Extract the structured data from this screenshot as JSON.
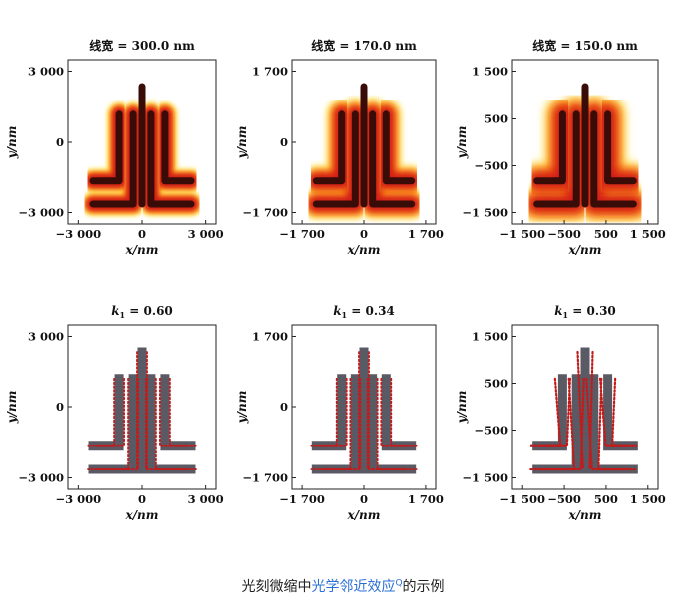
{
  "caption": {
    "prefix": "光刻微缩中",
    "link": "光学邻近效应",
    "link_marker": "Q",
    "suffix": "的示例"
  },
  "x_axis_label": "x/nm",
  "y_axis_label": "y/nm",
  "rows": [
    {
      "kind": "aerial-image",
      "panels": [
        {
          "title": "线宽 = 300.0 nm",
          "range": 3000,
          "ticks": [
            "−3 000",
            "0",
            "3 000"
          ],
          "blur": 1.0
        },
        {
          "title": "线宽 = 170.0 nm",
          "range": 1700,
          "ticks": [
            "−1 700",
            "0",
            "1 700"
          ],
          "blur": 1.5
        },
        {
          "title": "线宽 = 150.0 nm",
          "range": 1500,
          "ticks": [
            "−1 500",
            "−500",
            "500",
            "1 500"
          ],
          "ytickvals": [
            -1500,
            -500,
            500,
            1500
          ],
          "blur": 2.1
        }
      ]
    },
    {
      "kind": "printed-pattern",
      "panels": [
        {
          "title_pre": "k",
          "title_sub": "1",
          "title_post": " = 0.60",
          "range": 3000,
          "ticks": [
            "−3 000",
            "0",
            "3 000"
          ],
          "quality": 0
        },
        {
          "title_pre": "k",
          "title_sub": "1",
          "title_post": " = 0.34",
          "range": 1700,
          "ticks": [
            "−1 700",
            "0",
            "1 700"
          ],
          "quality": 1
        },
        {
          "title_pre": "k",
          "title_sub": "1",
          "title_post": " = 0.30",
          "range": 1500,
          "ticks": [
            "−1 500",
            "−500",
            "500",
            "1 500"
          ],
          "ytickvals": [
            -1500,
            -500,
            500,
            1500
          ],
          "quality": 2
        }
      ]
    }
  ],
  "colors": {
    "dark": "#3a0c08",
    "red": "#d11c14",
    "orange": "#ff7a10",
    "yellow": "#ffe23a",
    "gray": "#5a5a64",
    "dot": "#c41a1a"
  }
}
